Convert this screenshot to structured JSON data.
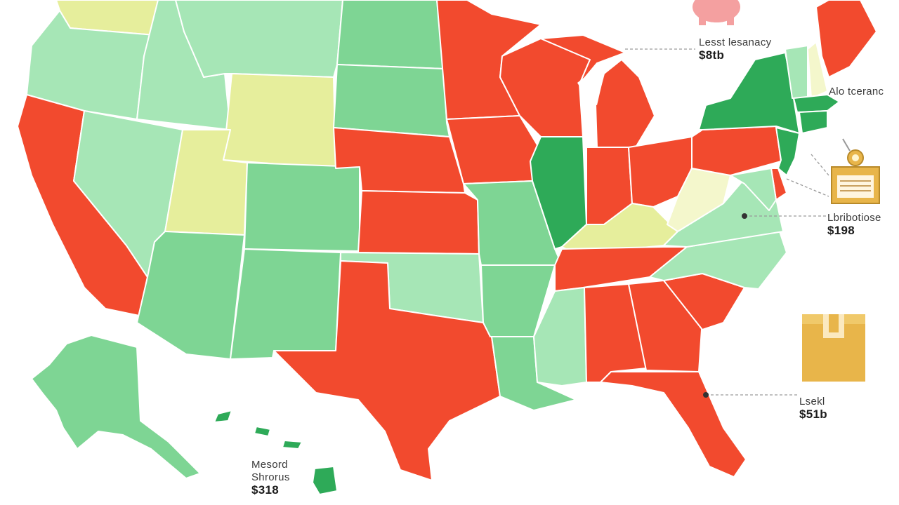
{
  "colors": {
    "red": "#f24a2e",
    "light_green": "#a6e6b6",
    "mid_green": "#7ed594",
    "dark_green": "#2eaa58",
    "yellow": "#e6ee9c",
    "pale_yellow": "#f4f7cc",
    "pink": "#f4a0a0",
    "gold": "#e8b54a"
  },
  "callouts": [
    {
      "id": "northeast",
      "label": "Lesst lesanacy",
      "value": "$8tb"
    },
    {
      "id": "new-england",
      "label": "Alo tceranc",
      "value": ""
    },
    {
      "id": "mid-atlantic",
      "label": "Lbribotiose",
      "value": "$198"
    },
    {
      "id": "southeast",
      "label": "Lsekl",
      "value": "$51b"
    },
    {
      "id": "pacific",
      "label": "Mesord",
      "value": ""
    },
    {
      "id": "pacific-2",
      "label": "Shrorus",
      "value": "$318"
    }
  ],
  "icons": [
    "piggy-bank-icon",
    "receipt-icon",
    "package-icon"
  ],
  "states": [
    {
      "name": "WA",
      "color": "yellow"
    },
    {
      "name": "OR",
      "color": "light_green"
    },
    {
      "name": "CA",
      "color": "red"
    },
    {
      "name": "ID",
      "color": "light_green"
    },
    {
      "name": "NV",
      "color": "light_green"
    },
    {
      "name": "MT",
      "color": "light_green"
    },
    {
      "name": "WY",
      "color": "yellow"
    },
    {
      "name": "UT",
      "color": "yellow"
    },
    {
      "name": "CO",
      "color": "mid_green"
    },
    {
      "name": "AZ",
      "color": "mid_green"
    },
    {
      "name": "NM",
      "color": "mid_green"
    },
    {
      "name": "ND",
      "color": "mid_green"
    },
    {
      "name": "SD",
      "color": "mid_green"
    },
    {
      "name": "NE",
      "color": "red"
    },
    {
      "name": "KS",
      "color": "red"
    },
    {
      "name": "OK",
      "color": "light_green"
    },
    {
      "name": "TX",
      "color": "red"
    },
    {
      "name": "MN",
      "color": "red"
    },
    {
      "name": "IA",
      "color": "red"
    },
    {
      "name": "MO",
      "color": "mid_green"
    },
    {
      "name": "AR",
      "color": "mid_green"
    },
    {
      "name": "LA",
      "color": "mid_green"
    },
    {
      "name": "WI",
      "color": "red"
    },
    {
      "name": "IL",
      "color": "dark_green"
    },
    {
      "name": "MI",
      "color": "red"
    },
    {
      "name": "IN",
      "color": "red"
    },
    {
      "name": "OH",
      "color": "red"
    },
    {
      "name": "KY",
      "color": "yellow"
    },
    {
      "name": "TN",
      "color": "red"
    },
    {
      "name": "MS",
      "color": "light_green"
    },
    {
      "name": "AL",
      "color": "red"
    },
    {
      "name": "GA",
      "color": "red"
    },
    {
      "name": "FL",
      "color": "red"
    },
    {
      "name": "SC",
      "color": "red"
    },
    {
      "name": "NC",
      "color": "light_green"
    },
    {
      "name": "VA",
      "color": "light_green"
    },
    {
      "name": "WV",
      "color": "pale_yellow"
    },
    {
      "name": "PA",
      "color": "red"
    },
    {
      "name": "NY",
      "color": "dark_green"
    },
    {
      "name": "NJ",
      "color": "dark_green"
    },
    {
      "name": "DE",
      "color": "red"
    },
    {
      "name": "MD",
      "color": "light_green"
    },
    {
      "name": "VT",
      "color": "light_green"
    },
    {
      "name": "NH",
      "color": "pale_yellow"
    },
    {
      "name": "ME",
      "color": "red"
    },
    {
      "name": "MA",
      "color": "dark_green"
    },
    {
      "name": "CT",
      "color": "dark_green"
    },
    {
      "name": "AK",
      "color": "mid_green"
    },
    {
      "name": "HI",
      "color": "dark_green"
    }
  ]
}
